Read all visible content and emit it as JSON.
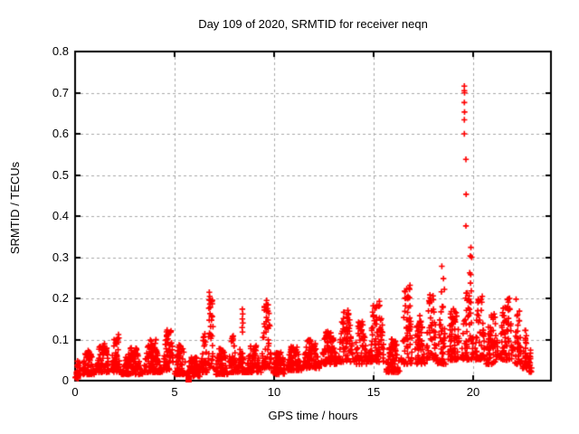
{
  "window": {
    "background": "#ffffff"
  },
  "chart_data": {
    "type": "scatter",
    "title": "Day 109 of 2020, SRMTID for receiver neqn",
    "xlabel": "GPS time / hours",
    "ylabel": "SRMTID / TECUs",
    "xlim": [
      0,
      23.9
    ],
    "ylim": [
      0,
      0.8
    ],
    "xticks": [
      0,
      5,
      10,
      15,
      20
    ],
    "xtick_labels": [
      "0",
      "5",
      "10",
      "15",
      "20"
    ],
    "yticks": [
      0,
      0.1,
      0.2,
      0.3,
      0.4,
      0.5,
      0.6,
      0.7,
      0.8
    ],
    "ytick_labels": [
      "0",
      "0.1",
      "0.2",
      "0.3",
      "0.4",
      "0.5",
      "0.6",
      "0.7",
      "0.8"
    ],
    "grid": true,
    "legend": "none",
    "marker": "plus",
    "marker_color": "#ff0000",
    "grid_color": "#a8a8a8",
    "border_color": "#000000",
    "seed": 20,
    "points_per_hour": 100,
    "band_segments": [
      [
        0.0,
        0.3,
        0.005,
        0.05
      ],
      [
        0.3,
        1.0,
        0.015,
        0.075
      ],
      [
        1.0,
        1.8,
        0.02,
        0.09
      ],
      [
        1.8,
        2.3,
        0.02,
        0.105
      ],
      [
        2.3,
        3.4,
        0.015,
        0.08
      ],
      [
        3.4,
        4.4,
        0.02,
        0.1
      ],
      [
        4.4,
        5.0,
        0.025,
        0.125
      ],
      [
        5.0,
        5.6,
        0.015,
        0.09
      ],
      [
        5.6,
        6.3,
        0.01,
        0.06
      ],
      [
        6.3,
        6.65,
        0.02,
        0.13
      ],
      [
        6.65,
        7.0,
        0.03,
        0.2
      ],
      [
        7.0,
        7.7,
        0.015,
        0.08
      ],
      [
        7.7,
        8.15,
        0.02,
        0.115
      ],
      [
        8.15,
        8.55,
        0.02,
        0.08
      ],
      [
        8.55,
        9.35,
        0.02,
        0.085
      ],
      [
        9.35,
        9.9,
        0.03,
        0.19
      ],
      [
        9.9,
        10.6,
        0.015,
        0.07
      ],
      [
        10.6,
        11.4,
        0.025,
        0.085
      ],
      [
        11.4,
        12.3,
        0.03,
        0.1
      ],
      [
        12.3,
        13.2,
        0.04,
        0.12
      ],
      [
        13.2,
        14.0,
        0.045,
        0.17
      ],
      [
        14.0,
        14.7,
        0.04,
        0.145
      ],
      [
        14.7,
        15.6,
        0.045,
        0.195
      ],
      [
        15.6,
        16.35,
        0.02,
        0.105
      ],
      [
        16.35,
        17.0,
        0.04,
        0.225
      ],
      [
        17.0,
        17.6,
        0.04,
        0.16
      ],
      [
        17.6,
        18.2,
        0.05,
        0.21
      ],
      [
        18.2,
        18.65,
        0.04,
        0.185
      ],
      [
        18.65,
        19.4,
        0.05,
        0.175
      ],
      [
        19.4,
        20.05,
        0.05,
        0.215
      ],
      [
        20.05,
        20.6,
        0.05,
        0.2
      ],
      [
        20.6,
        21.3,
        0.04,
        0.165
      ],
      [
        21.3,
        22.05,
        0.05,
        0.2
      ],
      [
        22.05,
        22.45,
        0.04,
        0.17
      ],
      [
        22.45,
        22.75,
        0.03,
        0.125
      ],
      [
        22.75,
        22.95,
        0.02,
        0.075
      ]
    ],
    "outlier_points": [
      [
        19.55,
        0.716
      ],
      [
        19.55,
        0.705
      ],
      [
        19.56,
        0.7
      ],
      [
        19.55,
        0.676
      ],
      [
        19.56,
        0.653
      ],
      [
        19.55,
        0.634
      ],
      [
        19.55,
        0.6
      ],
      [
        19.63,
        0.538
      ],
      [
        19.64,
        0.453
      ],
      [
        19.63,
        0.376
      ],
      [
        19.88,
        0.324
      ],
      [
        19.85,
        0.303
      ],
      [
        19.92,
        0.3
      ],
      [
        19.82,
        0.262
      ],
      [
        19.87,
        0.258
      ],
      [
        19.86,
        0.237
      ],
      [
        19.9,
        0.218
      ],
      [
        18.42,
        0.278
      ],
      [
        18.5,
        0.248
      ],
      [
        18.4,
        0.216
      ],
      [
        18.55,
        0.222
      ],
      [
        8.4,
        0.174
      ],
      [
        8.42,
        0.162
      ],
      [
        8.4,
        0.15
      ],
      [
        8.43,
        0.14
      ],
      [
        8.39,
        0.129
      ],
      [
        8.41,
        0.118
      ],
      [
        6.74,
        0.215
      ],
      [
        6.76,
        0.205
      ],
      [
        6.73,
        0.196
      ],
      [
        6.77,
        0.186
      ],
      [
        6.72,
        0.176
      ],
      [
        6.78,
        0.163
      ],
      [
        2.18,
        0.112
      ],
      [
        2.2,
        0.104
      ],
      [
        9.62,
        0.195
      ],
      [
        9.6,
        0.186
      ],
      [
        9.65,
        0.175
      ],
      [
        16.82,
        0.232
      ],
      [
        16.8,
        0.222
      ],
      [
        15.28,
        0.193
      ],
      [
        15.3,
        0.183
      ],
      [
        13.7,
        0.171
      ],
      [
        13.72,
        0.16
      ],
      [
        20.45,
        0.205
      ],
      [
        21.82,
        0.2
      ],
      [
        22.15,
        0.198
      ]
    ],
    "square_points": [
      [
        5.67,
        0.004
      ]
    ]
  }
}
